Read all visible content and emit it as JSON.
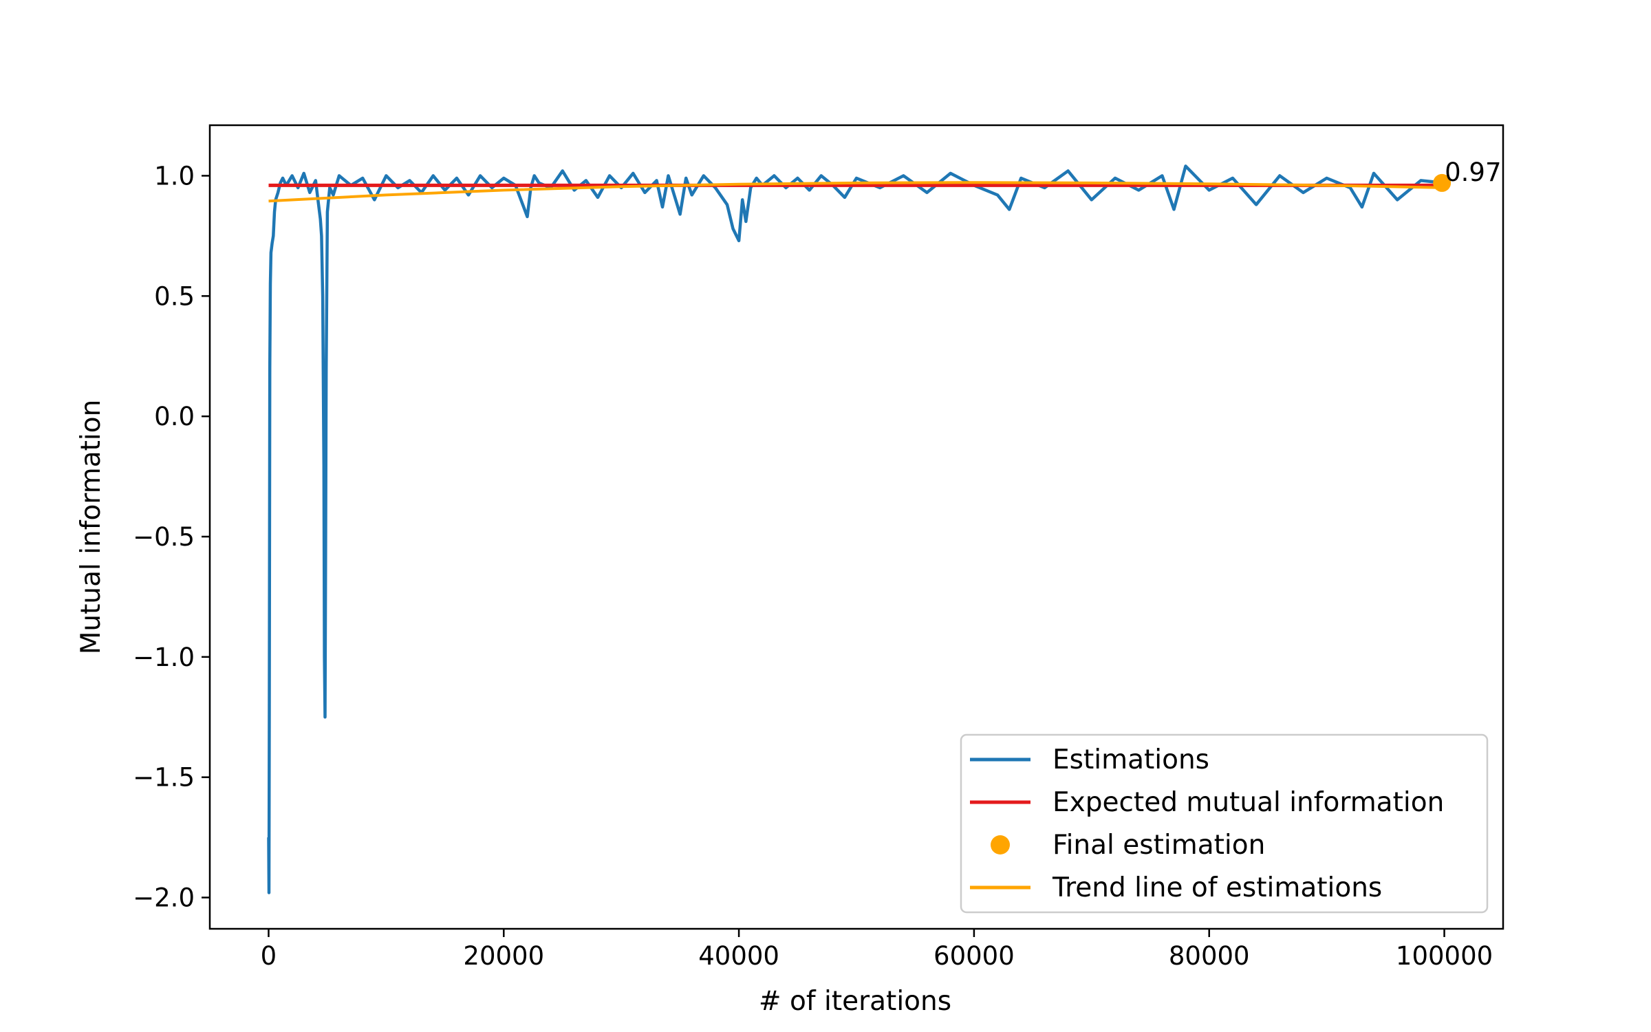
{
  "chart_data": {
    "type": "line",
    "title": "",
    "xlabel": "# of iterations",
    "ylabel": "Mutual information",
    "xlim": [
      -5000,
      105000
    ],
    "ylim": [
      -2.13,
      1.21
    ],
    "x_ticks": [
      0,
      20000,
      40000,
      60000,
      80000,
      100000
    ],
    "x_tick_labels": [
      "0",
      "20000",
      "40000",
      "60000",
      "80000",
      "100000"
    ],
    "y_ticks": [
      1.0,
      0.5,
      0.0,
      -0.5,
      -1.0,
      -1.5,
      -2.0
    ],
    "y_tick_labels": [
      "1.0",
      "0.5",
      "0.0",
      "−0.5",
      "−1.0",
      "−1.5",
      "−2.0"
    ],
    "grid": false,
    "legend_position": "lower right",
    "legend": [
      {
        "label": "Estimations",
        "marker": "line",
        "color": "#1f77b4"
      },
      {
        "label": "Expected mutual information",
        "marker": "line",
        "color": "#e41a1c"
      },
      {
        "label": "Final estimation",
        "marker": "dot",
        "color": "#ffa500"
      },
      {
        "label": "Trend line of estimations",
        "marker": "line",
        "color": "#ffa500"
      }
    ],
    "series": [
      {
        "name": "Estimations",
        "color": "#1f77b4",
        "x": [
          0,
          30,
          60,
          100,
          150,
          200,
          300,
          400,
          500,
          600,
          800,
          1000,
          1200,
          1500,
          2000,
          2500,
          3000,
          3500,
          4000,
          4200,
          4400,
          4500,
          4600,
          4700,
          4750,
          4800,
          4850,
          4900,
          5000,
          5200,
          5500,
          6000,
          7000,
          8000,
          9000,
          10000,
          11000,
          12000,
          13000,
          14000,
          15000,
          16000,
          17000,
          18000,
          19000,
          20000,
          21000,
          22000,
          22300,
          22600,
          23000,
          24000,
          25000,
          26000,
          27000,
          28000,
          29000,
          30000,
          31000,
          32000,
          33000,
          33500,
          34000,
          35000,
          35500,
          36000,
          37000,
          38000,
          39000,
          39500,
          40000,
          40300,
          40600,
          41000,
          41500,
          42000,
          43000,
          44000,
          45000,
          46000,
          47000,
          48000,
          49000,
          50000,
          52000,
          54000,
          56000,
          58000,
          60000,
          62000,
          63000,
          64000,
          66000,
          68000,
          70000,
          72000,
          74000,
          76000,
          77000,
          78000,
          80000,
          82000,
          84000,
          86000,
          88000,
          90000,
          92000,
          93000,
          94000,
          96000,
          98000,
          100000
        ],
        "values": [
          -1.75,
          -1.98,
          -1.2,
          0.2,
          0.55,
          0.68,
          0.72,
          0.75,
          0.85,
          0.9,
          0.93,
          0.97,
          0.99,
          0.96,
          1.0,
          0.95,
          1.01,
          0.93,
          0.98,
          0.9,
          0.82,
          0.75,
          0.5,
          -0.2,
          -1.0,
          -1.25,
          -0.6,
          0.2,
          0.85,
          0.95,
          0.92,
          1.0,
          0.96,
          0.99,
          0.9,
          1.0,
          0.95,
          0.98,
          0.93,
          1.0,
          0.94,
          0.99,
          0.92,
          1.0,
          0.95,
          0.99,
          0.96,
          0.83,
          0.95,
          1.0,
          0.97,
          0.95,
          1.02,
          0.94,
          0.98,
          0.91,
          1.0,
          0.95,
          1.01,
          0.93,
          0.98,
          0.87,
          1.0,
          0.84,
          0.99,
          0.92,
          1.0,
          0.95,
          0.88,
          0.78,
          0.73,
          0.9,
          0.81,
          0.95,
          0.99,
          0.96,
          1.0,
          0.95,
          0.99,
          0.94,
          1.0,
          0.96,
          0.91,
          0.99,
          0.95,
          1.0,
          0.93,
          1.01,
          0.96,
          0.92,
          0.86,
          0.99,
          0.95,
          1.02,
          0.9,
          0.99,
          0.94,
          1.0,
          0.86,
          1.04,
          0.94,
          0.99,
          0.88,
          1.0,
          0.93,
          0.99,
          0.95,
          0.87,
          1.01,
          0.9,
          0.98,
          0.97
        ]
      },
      {
        "name": "Expected mutual information",
        "color": "#e41a1c",
        "x": [
          0,
          100000
        ],
        "values": [
          0.96,
          0.96
        ]
      },
      {
        "name": "Trend line of estimations",
        "color": "#ffa500",
        "x": [
          0,
          10000,
          20000,
          30000,
          40000,
          50000,
          60000,
          70000,
          80000,
          90000,
          100000
        ],
        "values": [
          0.895,
          0.92,
          0.94,
          0.955,
          0.965,
          0.97,
          0.972,
          0.97,
          0.966,
          0.96,
          0.95
        ]
      }
    ],
    "final_point": {
      "name": "Final estimation",
      "x": 99800,
      "y": 0.97,
      "label": "0.97",
      "color": "#ffa500"
    }
  }
}
